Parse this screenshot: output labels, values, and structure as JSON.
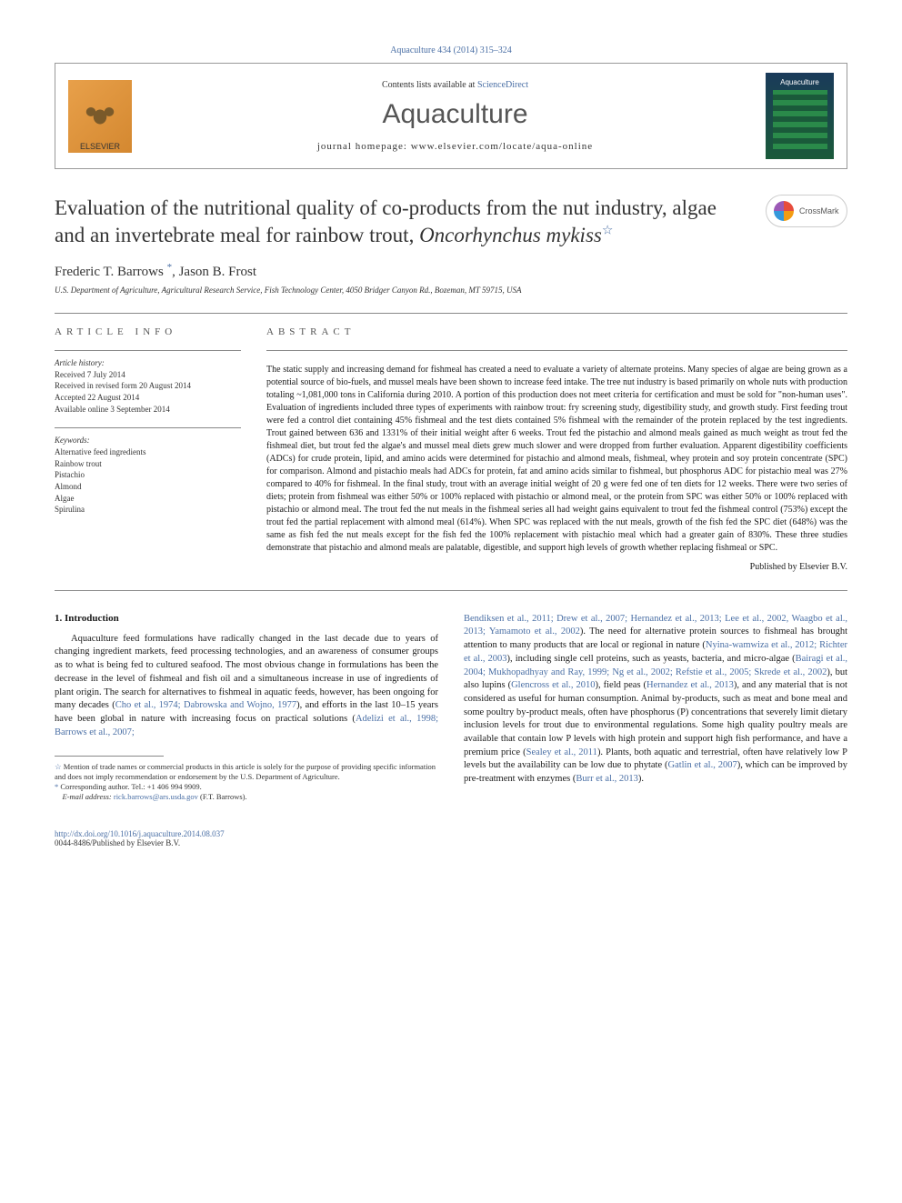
{
  "top_citation": "Aquaculture 434 (2014) 315–324",
  "header": {
    "contents_prefix": "Contents lists available at ",
    "contents_link": "ScienceDirect",
    "journal": "Aquaculture",
    "homepage": "journal homepage: www.elsevier.com/locate/aqua-online",
    "elsevier_label": "ELSEVIER",
    "cover_title": "Aquaculture"
  },
  "crossmark_label": "CrossMark",
  "title_main": "Evaluation of the nutritional quality of co-products from the nut industry, algae and an invertebrate meal for rainbow trout, ",
  "title_species": "Oncorhynchus mykiss",
  "title_star": "☆",
  "authors": {
    "a1": "Frederic T. Barrows ",
    "a1_mark": "*",
    "a2": ", Jason B. Frost"
  },
  "affiliation": "U.S. Department of Agriculture, Agricultural Research Service, Fish Technology Center, 4050 Bridger Canyon Rd., Bozeman, MT 59715, USA",
  "article_info": {
    "header": "ARTICLE INFO",
    "history_label": "Article history:",
    "history": "Received 7 July 2014\nReceived in revised form 20 August 2014\nAccepted 22 August 2014\nAvailable online 3 September 2014",
    "keywords_label": "Keywords:",
    "keywords": "Alternative feed ingredients\nRainbow trout\nPistachio\nAlmond\nAlgae\nSpirulina"
  },
  "abstract": {
    "header": "ABSTRACT",
    "text": "The static supply and increasing demand for fishmeal has created a need to evaluate a variety of alternate proteins. Many species of algae are being grown as a potential source of bio-fuels, and mussel meals have been shown to increase feed intake. The tree nut industry is based primarily on whole nuts with production totaling ~1,081,000 tons in California during 2010. A portion of this production does not meet criteria for certification and must be sold for \"non-human uses\". Evaluation of ingredients included three types of experiments with rainbow trout: fry screening study, digestibility study, and growth study. First feeding trout were fed a control diet containing 45% fishmeal and the test diets contained 5% fishmeal with the remainder of the protein replaced by the test ingredients. Trout gained between 636 and 1331% of their initial weight after 6 weeks. Trout fed the pistachio and almond meals gained as much weight as trout fed the fishmeal diet, but trout fed the algae's and mussel meal diets grew much slower and were dropped from further evaluation. Apparent digestibility coefficients (ADCs) for crude protein, lipid, and amino acids were determined for pistachio and almond meals, fishmeal, whey protein and soy protein concentrate (SPC) for comparison. Almond and pistachio meals had ADCs for protein, fat and amino acids similar to fishmeal, but phosphorus ADC for pistachio meal was 27% compared to 40% for fishmeal. In the final study, trout with an average initial weight of 20 g were fed one of ten diets for 12 weeks. There were two series of diets; protein from fishmeal was either 50% or 100% replaced with pistachio or almond meal, or the protein from SPC was either 50% or 100% replaced with pistachio or almond meal. The trout fed the nut meals in the fishmeal series all had weight gains equivalent to trout fed the fishmeal control (753%) except the trout fed the partial replacement with almond meal (614%). When SPC was replaced with the nut meals, growth of the fish fed the SPC diet (648%) was the same as fish fed the nut meals except for the fish fed the 100% replacement with pistachio meal which had a greater gain of 830%. These three studies demonstrate that pistachio and almond meals are palatable, digestible, and support high levels of growth whether replacing fishmeal or SPC.",
    "publisher": "Published by Elsevier B.V."
  },
  "intro": {
    "heading": "1. Introduction",
    "col1_p1": "Aquaculture feed formulations have radically changed in the last decade due to years of changing ingredient markets, feed processing technologies, and an awareness of consumer groups as to what is being fed to cultured seafood. The most obvious change in formulations has been the decrease in the level of fishmeal and fish oil and a simultaneous increase in use of ingredients of plant origin. The search for alternatives to fishmeal in aquatic feeds, however, has been ongoing for many decades (",
    "col1_c1": "Cho et al., 1974; Dabrowska and Wojno, 1977",
    "col1_p2": "), and efforts in the last 10–15 years have been global in nature with increasing focus on practical solutions (",
    "col1_c2": "Adelizi et al., 1998; Barrows et al., 2007;",
    "col2_c1": "Bendiksen et al., 2011; Drew et al., 2007; Hernandez et al., 2013; Lee et al., 2002, Waagbo et al., 2013; Yamamoto et al., 2002",
    "col2_p1": "). The need for alternative protein sources to fishmeal has brought attention to many products that are local or regional in nature (",
    "col2_c2": "Nyina-wamwiza et al., 2012; Richter et al., 2003",
    "col2_p2": "), including single cell proteins, such as yeasts, bacteria, and micro-algae (",
    "col2_c3": "Bairagi et al., 2004; Mukhopadhyay and Ray, 1999; Ng et al., 2002; Refstie et al., 2005; Skrede et al., 2002",
    "col2_p3": "), but also lupins (",
    "col2_c4": "Glencross et al., 2010",
    "col2_p4": "), field peas (",
    "col2_c5": "Hernandez et al., 2013",
    "col2_p5": "), and any material that is not considered as useful for human consumption. Animal by-products, such as meat and bone meal and some poultry by-product meals, often have phosphorus (P) concentrations that severely limit dietary inclusion levels for trout due to environmental regulations. Some high quality poultry meals are available that contain low P levels with high protein and support high fish performance, and have a premium price (",
    "col2_c6": "Sealey et al., 2011",
    "col2_p6": "). Plants, both aquatic and terrestrial, often have relatively low P levels but the availability can be low due to phytate (",
    "col2_c7": "Gatlin et al., 2007",
    "col2_p7": "), which can be improved by pre-treatment with enzymes (",
    "col2_c8": "Burr et al., 2013",
    "col2_p8": ")."
  },
  "footnotes": {
    "f1_mark": "☆",
    "f1": " Mention of trade names or commercial products in this article is solely for the purpose of providing specific information and does not imply recommendation or endorsement by the U.S. Department of Agriculture.",
    "f2_mark": "*",
    "f2": " Corresponding author. Tel.: +1 406 994 9909.",
    "f3_label": "E-mail address: ",
    "f3_email": "rick.barrows@ars.usda.gov",
    "f3_suffix": " (F.T. Barrows)."
  },
  "footer": {
    "doi": "http://dx.doi.org/10.1016/j.aquaculture.2014.08.037",
    "issn": "0044-8486/Published by Elsevier B.V."
  },
  "colors": {
    "link": "#4a6fa5",
    "text": "#1a1a1a",
    "rule": "#888888"
  }
}
